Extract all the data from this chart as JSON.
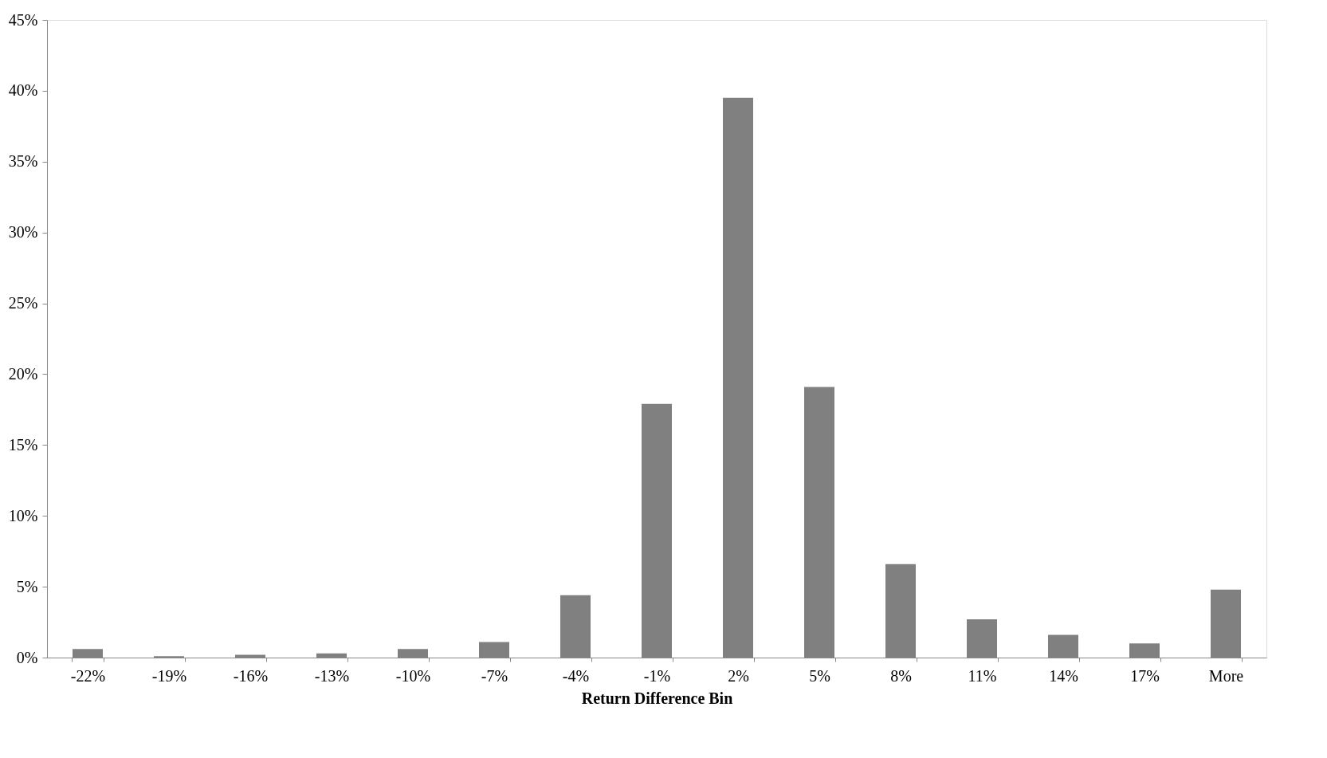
{
  "chart_data": {
    "type": "bar",
    "xlabel": "Return Difference Bin",
    "categories": [
      "-22%",
      "-19%",
      "-16%",
      "-13%",
      "-10%",
      "-7%",
      "-4%",
      "-1%",
      "2%",
      "5%",
      "8%",
      "11%",
      "14%",
      "17%",
      "More"
    ],
    "values": [
      0.6,
      0.1,
      0.2,
      0.3,
      0.6,
      1.1,
      4.4,
      17.9,
      39.5,
      19.1,
      6.6,
      2.7,
      1.6,
      1.0,
      4.8
    ],
    "color": "#808080",
    "ylim": [
      0,
      45
    ],
    "yticks": [
      {
        "value": 0,
        "label": "0%"
      },
      {
        "value": 5,
        "label": "5%"
      },
      {
        "value": 10,
        "label": "10%"
      },
      {
        "value": 15,
        "label": "15%"
      },
      {
        "value": 20,
        "label": "20%"
      },
      {
        "value": 25,
        "label": "25%"
      },
      {
        "value": 30,
        "label": "30%"
      },
      {
        "value": 35,
        "label": "35%"
      },
      {
        "value": 40,
        "label": "40%"
      },
      {
        "value": 45,
        "label": "45%"
      }
    ],
    "grid": false
  }
}
